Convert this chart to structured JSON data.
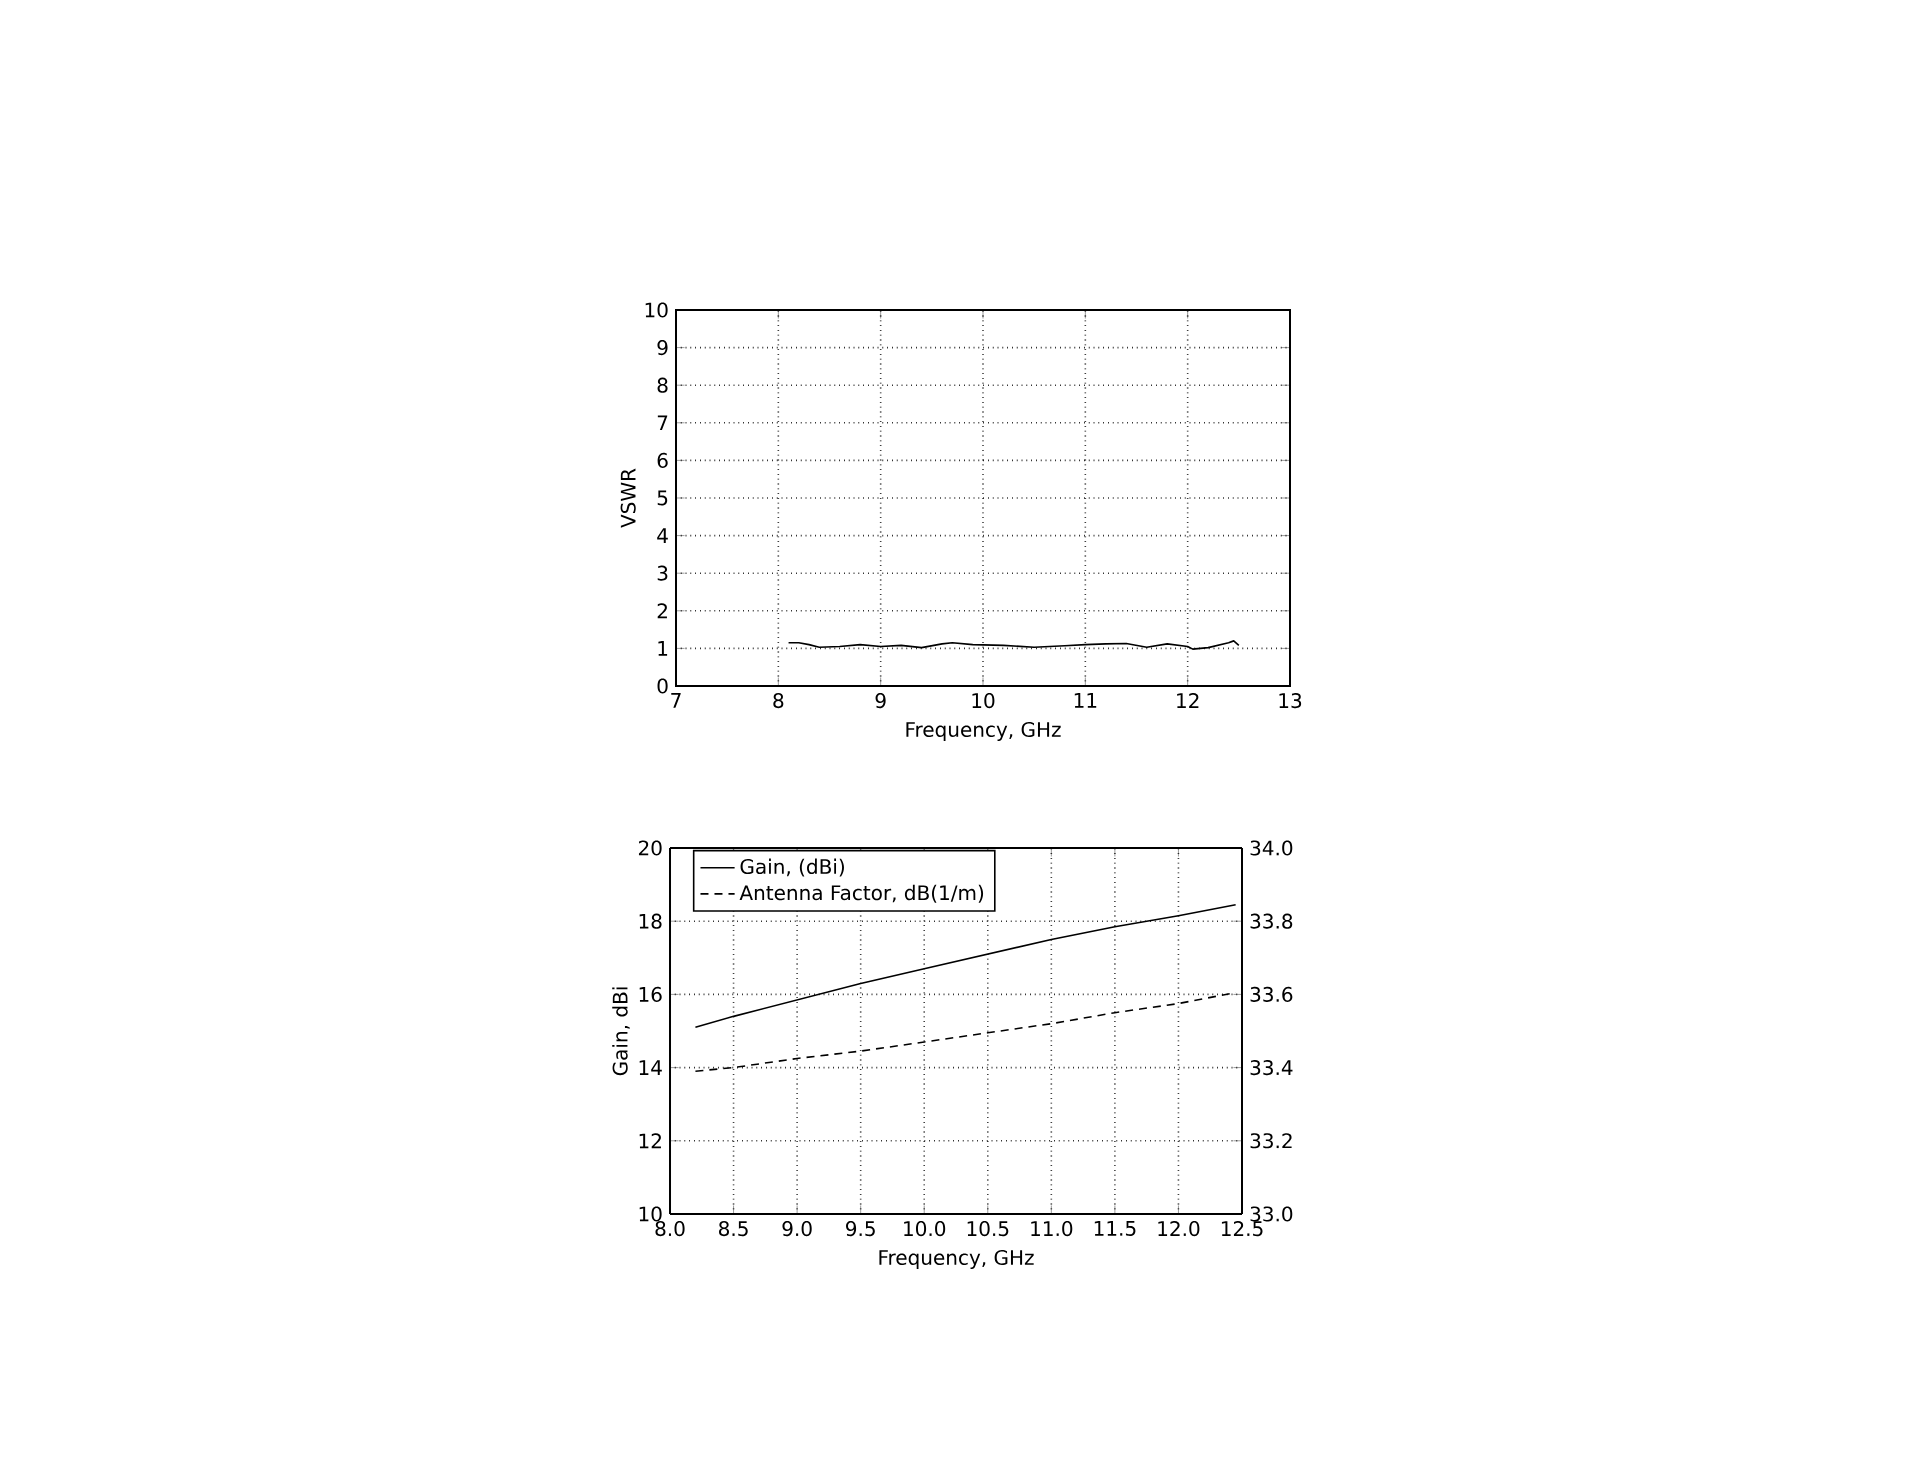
{
  "chart_data": [
    {
      "type": "line",
      "xlabel": "Frequency, GHz",
      "ylabel": "VSWR",
      "xlim": [
        7,
        13
      ],
      "ylim": [
        0,
        10
      ],
      "xticks": [
        7,
        8,
        9,
        10,
        11,
        12,
        13
      ],
      "yticks": [
        0,
        1,
        2,
        3,
        4,
        5,
        6,
        7,
        8,
        9,
        10
      ],
      "grid": true,
      "series": [
        {
          "color": "#000000",
          "x": [
            8.1,
            8.2,
            8.3,
            8.4,
            8.6,
            8.8,
            9.0,
            9.2,
            9.4,
            9.6,
            9.7,
            9.9,
            10.2,
            10.5,
            10.8,
            11.0,
            11.2,
            11.4,
            11.6,
            11.8,
            12.0,
            12.05,
            12.2,
            12.4,
            12.45,
            12.5
          ],
          "values": [
            1.15,
            1.15,
            1.1,
            1.03,
            1.05,
            1.1,
            1.05,
            1.08,
            1.02,
            1.12,
            1.15,
            1.1,
            1.08,
            1.03,
            1.07,
            1.1,
            1.12,
            1.13,
            1.03,
            1.12,
            1.05,
            0.98,
            1.02,
            1.15,
            1.2,
            1.08
          ]
        }
      ]
    },
    {
      "type": "line",
      "xlabel": "Frequency, GHz",
      "ylabel": "Gain, dBi",
      "xlim": [
        8,
        12.5
      ],
      "ylim": [
        10,
        20
      ],
      "y2lim": [
        33,
        34
      ],
      "grid": true,
      "legend": "top left",
      "xticks": [
        {
          "value": 8,
          "label": "8.0"
        },
        8.5,
        {
          "value": 9,
          "label": "9.0"
        },
        9.5,
        {
          "value": 10,
          "label": "10.0"
        },
        10.5,
        {
          "value": 11,
          "label": "11.0"
        },
        11.5,
        {
          "value": 12,
          "label": "12.0"
        },
        12.5
      ],
      "yticks": [
        10,
        12,
        14,
        16,
        18,
        20
      ],
      "y2ticks": [
        {
          "value": 33,
          "label": "33.0"
        },
        33.2,
        33.4,
        33.6,
        33.8,
        {
          "value": 34,
          "label": "34.0"
        }
      ],
      "series": [
        {
          "name": "Gain, (dBi)",
          "color": "#000000",
          "line_style": "solid",
          "x": [
            8.2,
            8.5,
            9.0,
            9.5,
            10.0,
            10.5,
            11.0,
            11.5,
            12.0,
            12.45
          ],
          "values": [
            15.1,
            15.4,
            15.85,
            16.3,
            16.7,
            17.1,
            17.5,
            17.85,
            18.15,
            18.45
          ]
        },
        {
          "name": "Antenna Factor, dB(1/m)",
          "color": "#000000",
          "line_style": "dashed",
          "axis": "y2",
          "x": [
            8.2,
            8.5,
            9.0,
            9.5,
            10.0,
            10.5,
            11.0,
            11.5,
            12.0,
            12.45
          ],
          "values": [
            33.39,
            33.4,
            33.425,
            33.445,
            33.47,
            33.495,
            33.52,
            33.55,
            33.575,
            33.605
          ]
        }
      ]
    }
  ]
}
